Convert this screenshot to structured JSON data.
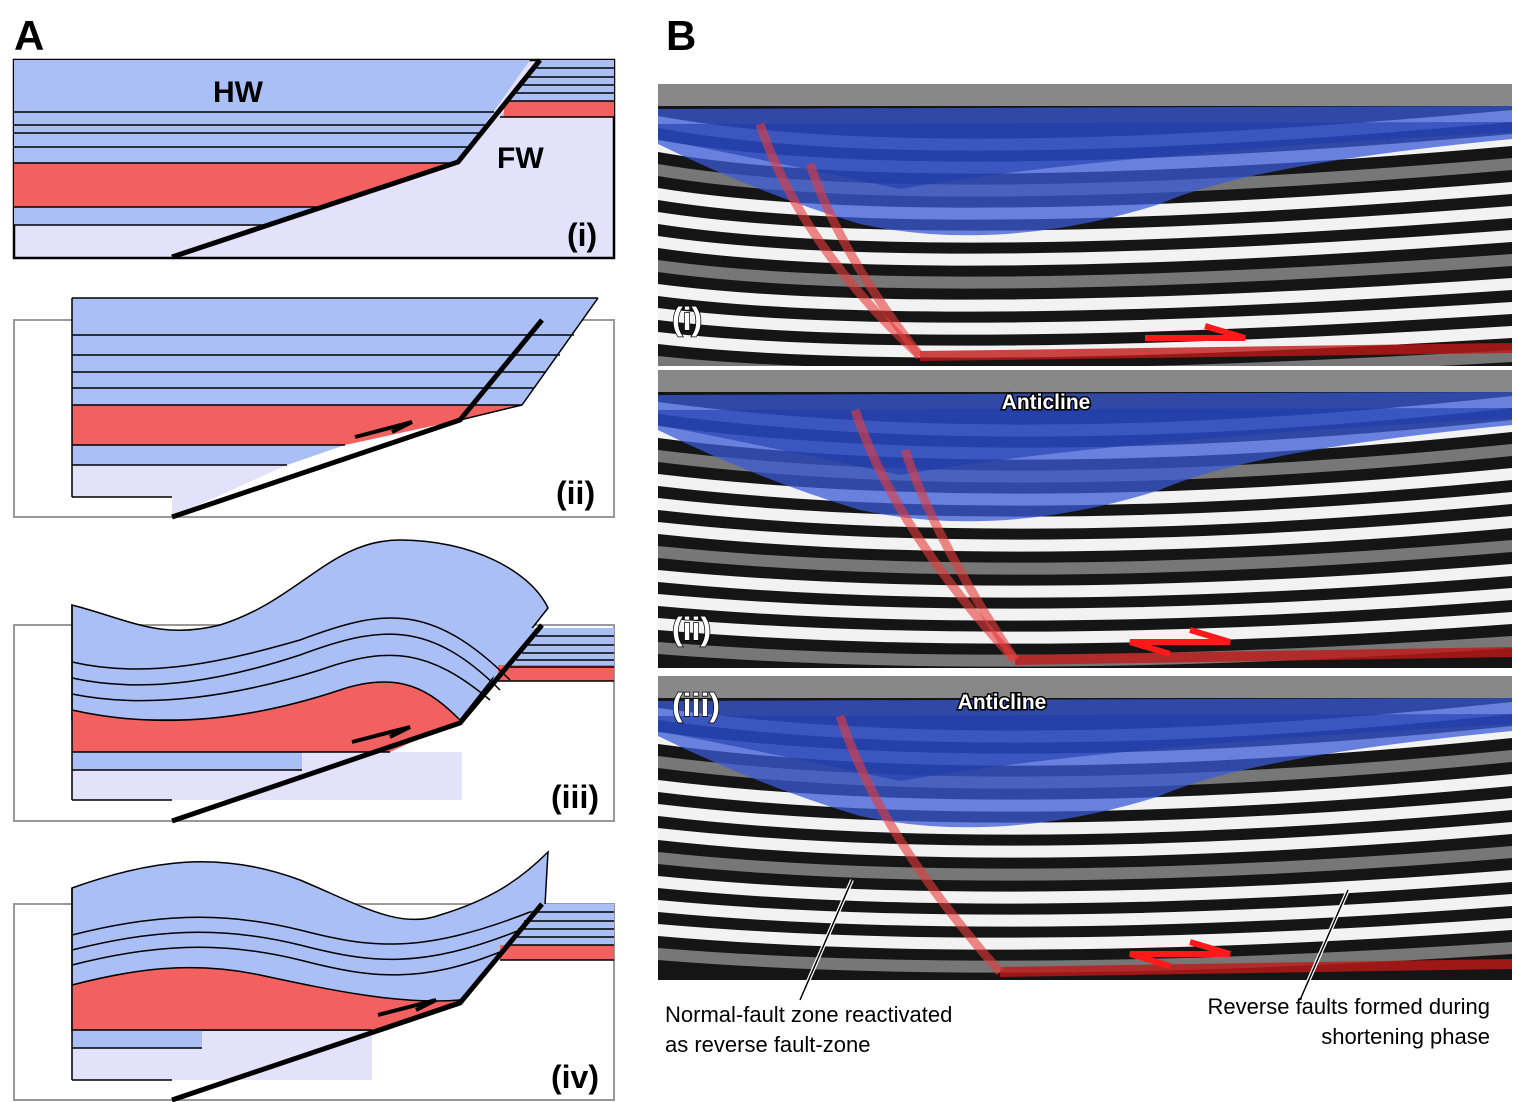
{
  "panel_a": {
    "label": "A",
    "hw": "HW",
    "fw": "FW",
    "stages": [
      "(i)",
      "(ii)",
      "(iii)",
      "(iv)"
    ]
  },
  "panel_b": {
    "label": "B",
    "stages": [
      "(i)",
      "(ii)",
      "(iii)"
    ],
    "anticline_labels": [
      "Anticline",
      "Anticline"
    ],
    "annotations": [
      {
        "lines": [
          "Normal-fault zone reactivated",
          "as reverse fault-zone"
        ]
      },
      {
        "lines": [
          "Reverse faults formed during",
          "shortening phase"
        ]
      }
    ]
  }
}
